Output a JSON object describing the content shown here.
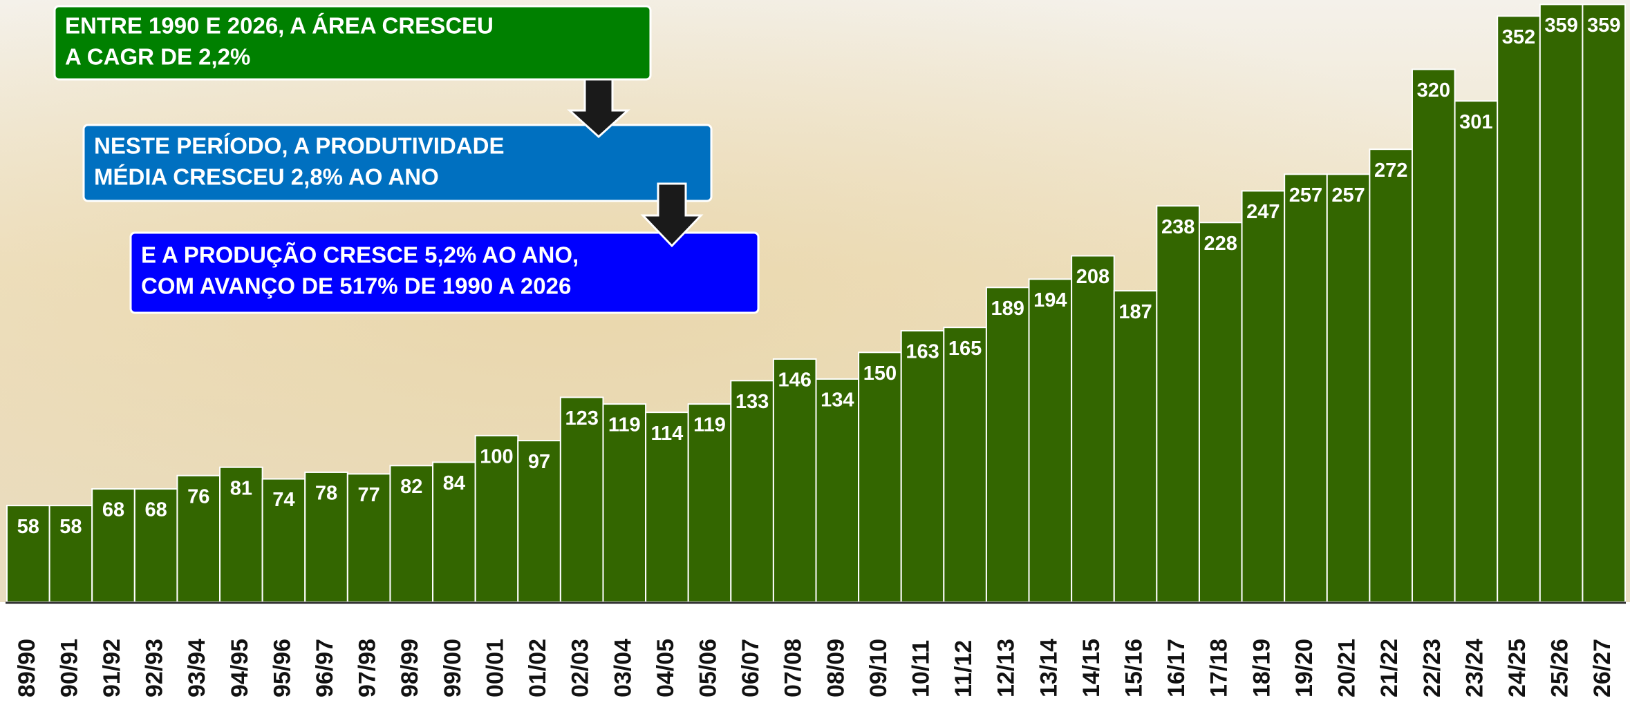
{
  "chart_data": {
    "type": "bar",
    "categories": [
      "89/90",
      "90/91",
      "91/92",
      "92/93",
      "93/94",
      "94/95",
      "95/96",
      "96/97",
      "97/98",
      "98/99",
      "99/00",
      "00/01",
      "01/02",
      "02/03",
      "03/04",
      "04/05",
      "05/06",
      "06/07",
      "07/08",
      "08/09",
      "09/10",
      "10/11",
      "11/12",
      "12/13",
      "13/14",
      "14/15",
      "15/16",
      "16/17",
      "17/18",
      "18/19",
      "19/20",
      "20/21",
      "21/22",
      "22/23",
      "23/24",
      "24/25",
      "25/26",
      "26/27"
    ],
    "values": [
      58,
      58,
      68,
      68,
      76,
      81,
      74,
      78,
      77,
      82,
      84,
      100,
      97,
      123,
      119,
      114,
      119,
      133,
      146,
      134,
      150,
      163,
      165,
      189,
      194,
      208,
      187,
      238,
      228,
      247,
      257,
      257,
      272,
      320,
      301,
      352,
      359,
      359
    ],
    "color": "#336600",
    "ylim": [
      0,
      360
    ],
    "annotations": [
      [
        "ENTRE 1990 E 2026, A ÁREA CRESCEU",
        "A CAGR DE 2,2%"
      ],
      [
        "NESTE PERÍODO, A PRODUTIVIDADE",
        "MÉDIA CRESCEU 2,8% AO ANO"
      ],
      [
        "E A PRODUÇÃO CRESCE 5,2% AO ANO,",
        "COM AVANÇO DE 517% DE 1990 A 2026"
      ]
    ]
  }
}
